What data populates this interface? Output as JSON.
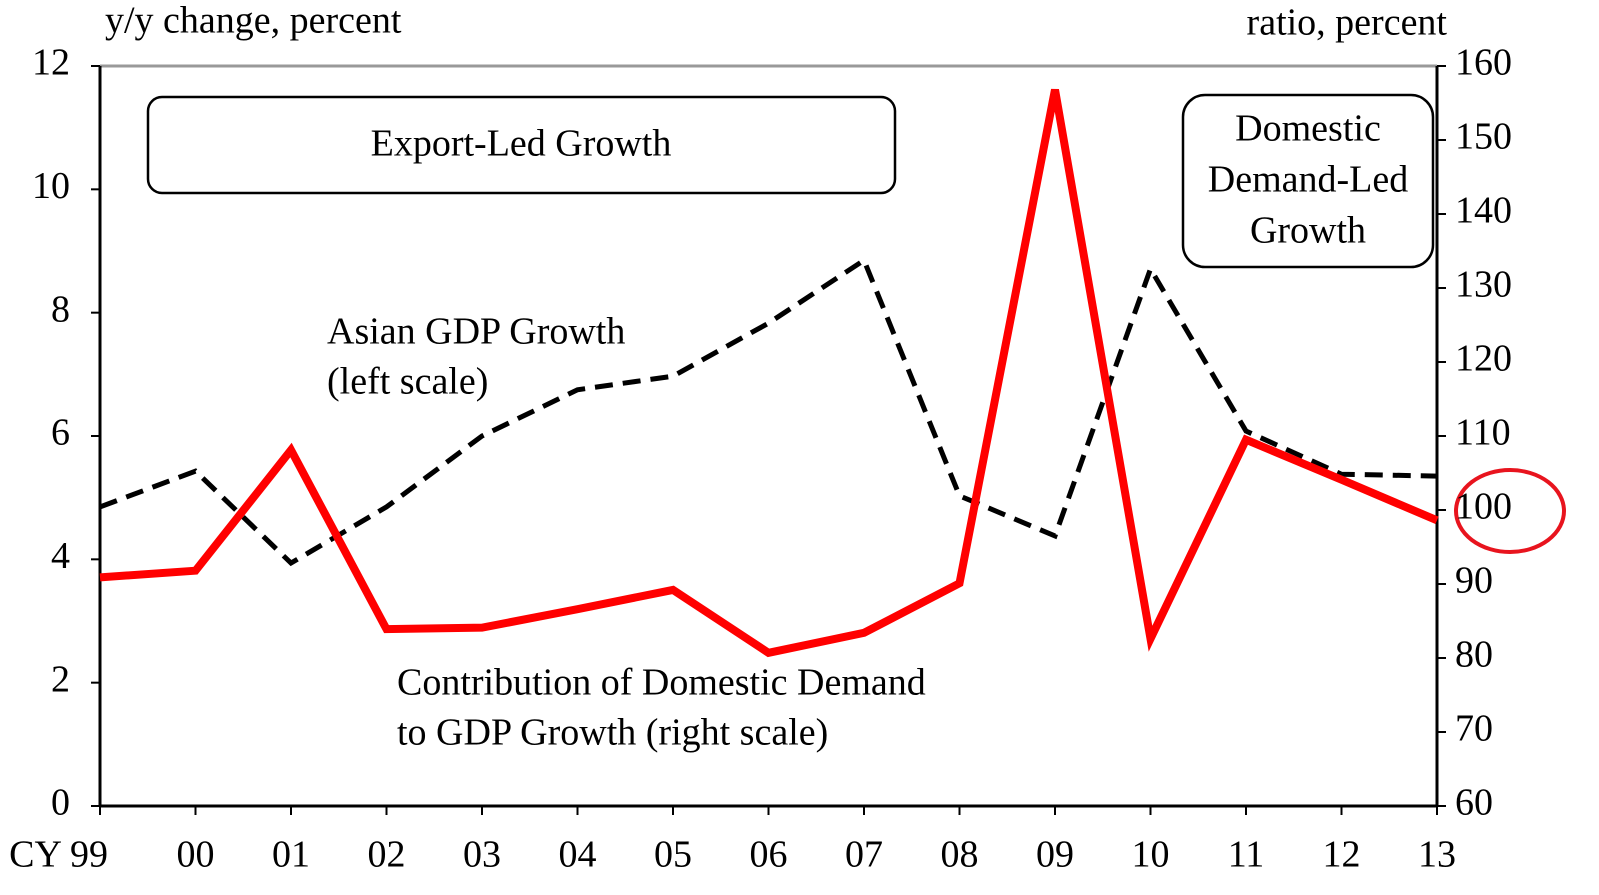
{
  "chart_data": {
    "type": "line",
    "y_label": "y/y change, percent",
    "y2_label": "ratio, percent",
    "categories": [
      "CY 99",
      "00",
      "01",
      "02",
      "03",
      "04",
      "05",
      "06",
      "07",
      "08",
      "09",
      "10",
      "11",
      "12",
      "13"
    ],
    "series": [
      {
        "name": "Asian GDP Growth (left scale)",
        "color": "#000000",
        "style": "dashed",
        "values": [
          4.85,
          5.43,
          3.94,
          4.85,
          6.0,
          6.75,
          6.97,
          7.83,
          8.85,
          5.03,
          4.38,
          8.71,
          6.08,
          5.38,
          5.35
        ]
      },
      {
        "name": "Contribution of Domestic Demand to GDP Growth (right scale)",
        "color": "#ff0000",
        "style": "solid",
        "axis": "y2",
        "values": [
          90.9,
          91.8,
          108.1,
          83.9,
          84.1,
          86.6,
          89.2,
          80.7,
          83.4,
          90.1,
          156.8,
          82.6,
          109.5,
          104.1,
          98.6
        ]
      }
    ],
    "series_labels": [
      [
        "Asian GDP Growth",
        "(left scale)"
      ],
      [
        "Contribution of Domestic Demand",
        "to GDP Growth (right scale)"
      ]
    ],
    "box_annotations": [
      [
        "Export-Led Growth"
      ],
      [
        "Domestic",
        "Demand-Led",
        "Growth"
      ]
    ],
    "ylim": [
      0,
      12
    ],
    "yticks": [
      0,
      2,
      4,
      6,
      8,
      10,
      12
    ],
    "y2lim": [
      60,
      160
    ],
    "y2ticks": [
      60,
      70,
      80,
      90,
      100,
      110,
      120,
      130,
      140,
      150,
      160
    ]
  }
}
